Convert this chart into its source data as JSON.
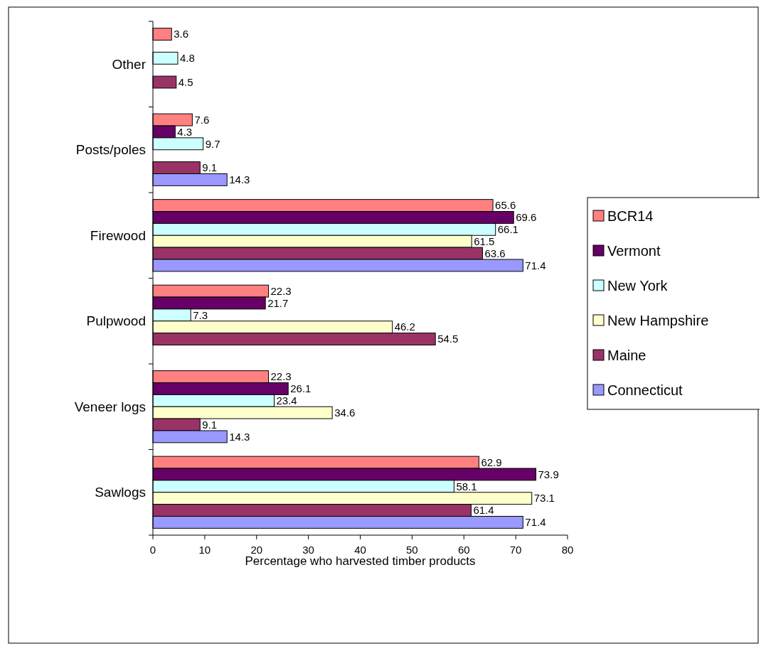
{
  "chart_data": {
    "type": "bar",
    "orientation": "horizontal",
    "xlabel": "Percentage who harvested timber products",
    "categories": [
      "Other",
      "Posts/poles",
      "Firewood",
      "Pulpwood",
      "Veneer logs",
      "Sawlogs"
    ],
    "series": [
      {
        "name": "BCR14",
        "color": "#ff8080",
        "values": [
          3.6,
          7.6,
          65.6,
          22.3,
          22.3,
          62.9
        ]
      },
      {
        "name": "Vermont",
        "color": "#660066",
        "values": [
          null,
          4.3,
          69.6,
          21.7,
          26.1,
          73.9
        ]
      },
      {
        "name": "New York",
        "color": "#ccffff",
        "values": [
          4.8,
          9.7,
          66.1,
          7.3,
          23.4,
          58.1
        ]
      },
      {
        "name": "New Hampshire",
        "color": "#ffffcc",
        "values": [
          null,
          null,
          61.5,
          46.2,
          34.6,
          73.1
        ]
      },
      {
        "name": "Maine",
        "color": "#993366",
        "values": [
          4.5,
          9.1,
          63.6,
          54.5,
          9.1,
          61.4
        ]
      },
      {
        "name": "Connecticut",
        "color": "#9999ff",
        "values": [
          null,
          14.3,
          71.4,
          null,
          14.3,
          71.4
        ]
      }
    ],
    "xlim": [
      0,
      80
    ],
    "xticks": [
      0,
      10,
      20,
      30,
      40,
      50,
      60,
      70,
      80
    ],
    "data_labels": true,
    "legend": "right",
    "grid": false
  }
}
